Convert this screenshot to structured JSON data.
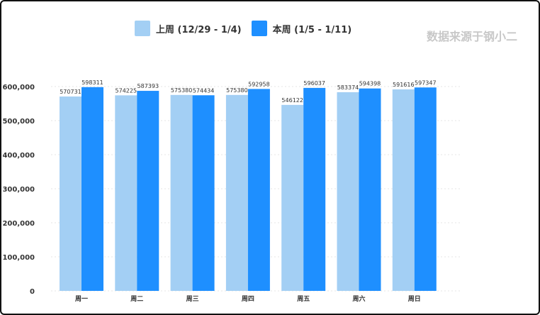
{
  "watermark": "数据来源于钢小二",
  "chart_data": {
    "type": "bar",
    "title": "",
    "xlabel": "",
    "ylabel": "",
    "categories": [
      "周一",
      "周二",
      "周三",
      "周四",
      "周五",
      "周六",
      "周日"
    ],
    "series": [
      {
        "name": "上周 (12/29 - 1/4)",
        "color": "#a3cff4",
        "values": [
          570731,
          574225,
          575380,
          575380,
          546122,
          583374,
          591616
        ]
      },
      {
        "name": "本周 (1/5 - 1/11)",
        "color": "#1e8fff",
        "values": [
          598311,
          587393,
          574434,
          592958,
          596037,
          594398,
          597347
        ]
      }
    ],
    "ylim": [
      0,
      600000
    ],
    "yticks": [
      0,
      100000,
      200000,
      300000,
      400000,
      500000,
      600000
    ],
    "ytick_labels": [
      "0",
      "100,000",
      "200,000",
      "300,000",
      "400,000",
      "500,000",
      "600,000"
    ],
    "grid": true,
    "legend": "top-center"
  }
}
